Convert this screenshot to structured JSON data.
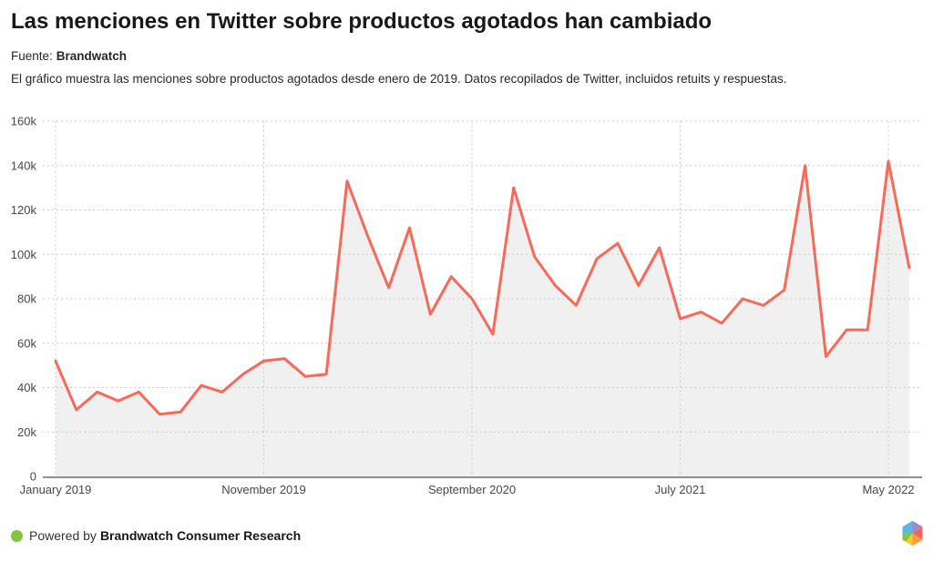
{
  "header": {
    "title": "Las menciones en Twitter sobre productos agotados han cambiado",
    "source_prefix": "Fuente:",
    "source_name": "Brandwatch",
    "description": "El gráfico muestra las menciones sobre productos agotados desde enero de 2019. Datos recopilados de Twitter, incluidos retuits y respuestas."
  },
  "chart_data": {
    "type": "area",
    "title": "Las menciones en Twitter sobre productos agotados han cambiado",
    "x": [
      "2019-01",
      "2019-02",
      "2019-03",
      "2019-04",
      "2019-05",
      "2019-06",
      "2019-07",
      "2019-08",
      "2019-09",
      "2019-10",
      "2019-11",
      "2019-12",
      "2020-01",
      "2020-02",
      "2020-03",
      "2020-04",
      "2020-05",
      "2020-06",
      "2020-07",
      "2020-08",
      "2020-09",
      "2020-10",
      "2020-11",
      "2020-12",
      "2021-01",
      "2021-02",
      "2021-03",
      "2021-04",
      "2021-05",
      "2021-06",
      "2021-07",
      "2021-08",
      "2021-09",
      "2021-10",
      "2021-11",
      "2021-12",
      "2022-01",
      "2022-02",
      "2022-03",
      "2022-04",
      "2022-05",
      "2022-06"
    ],
    "series": [
      {
        "name": "Menciones en Twitter sobre productos agotados",
        "values": [
          52000,
          30000,
          38000,
          34000,
          38000,
          28000,
          29000,
          41000,
          38000,
          46000,
          52000,
          53000,
          45000,
          46000,
          133000,
          108000,
          85000,
          112000,
          73000,
          90000,
          80000,
          64000,
          130000,
          99000,
          86000,
          77000,
          98000,
          105000,
          86000,
          103000,
          71000,
          74000,
          69000,
          80000,
          77000,
          84000,
          140000,
          54000,
          66000,
          66000,
          142000,
          94000
        ]
      }
    ],
    "xlabel": "",
    "ylabel": "",
    "ylim": [
      0,
      160000
    ],
    "grid": true,
    "legend_position": "none",
    "y_ticks": [
      {
        "value": 0,
        "label": "0"
      },
      {
        "value": 20000,
        "label": "20k"
      },
      {
        "value": 40000,
        "label": "40k"
      },
      {
        "value": 60000,
        "label": "60k"
      },
      {
        "value": 80000,
        "label": "80k"
      },
      {
        "value": 100000,
        "label": "100k"
      },
      {
        "value": 120000,
        "label": "120k"
      },
      {
        "value": 140000,
        "label": "140k"
      },
      {
        "value": 160000,
        "label": "160k"
      }
    ],
    "x_ticks": [
      {
        "month_index": 0,
        "label": "January 2019"
      },
      {
        "month_index": 10,
        "label": "November 2019"
      },
      {
        "month_index": 20,
        "label": "September 2020"
      },
      {
        "month_index": 30,
        "label": "July 2021"
      },
      {
        "month_index": 40,
        "label": "May 2022"
      }
    ],
    "line_color": "#F8695A",
    "fill_color": "#F0F0F0",
    "grid_color": "#CCCCCC",
    "axis_color": "#8F8F8F"
  },
  "footer": {
    "powered_by_prefix": "Powered by",
    "powered_by_name": "Brandwatch Consumer Research",
    "dot_color": "#83C341",
    "logo_colors": {
      "blue": "#5BB7E5",
      "purple": "#A984CE",
      "red": "#F4645C",
      "orange": "#F89C3D",
      "yellow": "#FCC62E",
      "green": "#85C441"
    }
  }
}
